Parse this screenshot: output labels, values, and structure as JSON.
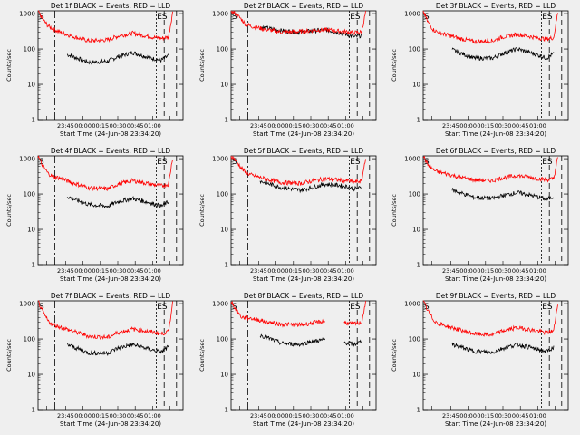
{
  "figure": {
    "background": "#efefef"
  },
  "colors": {
    "events": "#000000",
    "lld": "#ff0000",
    "axis": "#000000"
  },
  "chart_data": [
    {
      "type": "line",
      "title": "Det 1f BLACK = Events, RED = LLD",
      "ylabel": "Counts/sec",
      "xlabel": "Start Time (24-Jun-08 23:34:20)",
      "xticks": [
        "23:45",
        "00:00",
        "00:15",
        "00:30",
        "00:45",
        "01:00"
      ],
      "yticks": [
        "1",
        "10",
        "100",
        "1000"
      ],
      "ylim": [
        1,
        1200
      ],
      "yscale": "log",
      "markers": [
        "S",
        "ES"
      ],
      "series": [
        {
          "name": "Events",
          "color": "#000000",
          "x": [
            0.0,
            0.05,
            0.1,
            0.2,
            0.35,
            0.48,
            0.55,
            0.65,
            0.78,
            0.85,
            0.9
          ],
          "values": [
            null,
            null,
            null,
            70,
            42,
            45,
            60,
            80,
            55,
            48,
            65
          ]
        },
        {
          "name": "LLD",
          "color": "#ff0000",
          "x": [
            0.0,
            0.03,
            0.07,
            0.1,
            0.15,
            0.25,
            0.35,
            0.48,
            0.55,
            0.65,
            0.78,
            0.85,
            0.9,
            0.93
          ],
          "values": [
            1200,
            700,
            450,
            380,
            300,
            220,
            170,
            180,
            230,
            280,
            220,
            200,
            220,
            1200
          ]
        }
      ]
    },
    {
      "type": "line",
      "title": "Det 2f BLACK = Events, RED = LLD",
      "ylabel": "Counts/sec",
      "xlabel": "Start Time (24-Jun-08 23:34:20)",
      "xticks": [
        "23:45",
        "00:00",
        "00:15",
        "00:30",
        "00:45",
        "01:00"
      ],
      "yticks": [
        "1",
        "10",
        "100",
        "1000"
      ],
      "ylim": [
        1,
        1200
      ],
      "yscale": "log",
      "markers": [
        "S",
        "ES"
      ],
      "series": [
        {
          "name": "Events",
          "color": "#000000",
          "x": [
            0.0,
            0.05,
            0.1,
            0.2,
            0.35,
            0.48,
            0.55,
            0.65,
            0.78,
            0.85,
            0.9
          ],
          "values": [
            null,
            null,
            null,
            420,
            330,
            300,
            320,
            350,
            270,
            220,
            240
          ]
        },
        {
          "name": "LLD",
          "color": "#ff0000",
          "x": [
            0.0,
            0.03,
            0.07,
            0.1,
            0.15,
            0.25,
            0.35,
            0.48,
            0.55,
            0.65,
            0.78,
            0.85,
            0.9,
            0.93
          ],
          "values": [
            1200,
            1000,
            700,
            500,
            430,
            350,
            300,
            310,
            330,
            350,
            310,
            290,
            300,
            1200
          ]
        }
      ]
    },
    {
      "type": "line",
      "title": "Det 3f BLACK = Events, RED = LLD",
      "ylabel": "Counts/sec",
      "xlabel": "Start Time (24-Jun-08 23:34:20)",
      "xticks": [
        "23:45",
        "00:00",
        "00:15",
        "00:30",
        "00:45",
        "01:00"
      ],
      "yticks": [
        "1",
        "10",
        "100",
        "1000"
      ],
      "ylim": [
        1,
        1200
      ],
      "yscale": "log",
      "markers": [
        "S",
        "ES"
      ],
      "series": [
        {
          "name": "Events",
          "color": "#000000",
          "x": [
            0.0,
            0.05,
            0.1,
            0.2,
            0.35,
            0.48,
            0.55,
            0.65,
            0.78,
            0.85,
            0.9
          ],
          "values": [
            null,
            null,
            null,
            95,
            55,
            55,
            75,
            100,
            70,
            55,
            75
          ]
        },
        {
          "name": "LLD",
          "color": "#ff0000",
          "x": [
            0.0,
            0.03,
            0.07,
            0.1,
            0.15,
            0.25,
            0.35,
            0.48,
            0.55,
            0.65,
            0.78,
            0.85,
            0.9,
            0.93
          ],
          "values": [
            1200,
            600,
            350,
            300,
            260,
            200,
            160,
            170,
            220,
            260,
            210,
            190,
            210,
            1200
          ]
        }
      ]
    },
    {
      "type": "line",
      "title": "Det 4f BLACK = Events, RED = LLD",
      "ylabel": "Counts/sec",
      "xlabel": "Start Time (24-Jun-08 23:34:20)",
      "xticks": [
        "23:45",
        "00:00",
        "00:15",
        "00:30",
        "00:45",
        "01:00"
      ],
      "yticks": [
        "1",
        "10",
        "100",
        "1000"
      ],
      "ylim": [
        1,
        1200
      ],
      "yscale": "log",
      "markers": [
        "S",
        "ES"
      ],
      "series": [
        {
          "name": "Events",
          "color": "#000000",
          "x": [
            0.0,
            0.05,
            0.1,
            0.2,
            0.35,
            0.48,
            0.55,
            0.65,
            0.78,
            0.85,
            0.9
          ],
          "values": [
            null,
            null,
            null,
            85,
            50,
            45,
            60,
            75,
            55,
            45,
            60
          ]
        },
        {
          "name": "LLD",
          "color": "#ff0000",
          "x": [
            0.0,
            0.03,
            0.07,
            0.1,
            0.15,
            0.25,
            0.35,
            0.48,
            0.55,
            0.65,
            0.78,
            0.85,
            0.9,
            0.93
          ],
          "values": [
            1200,
            650,
            380,
            320,
            280,
            200,
            150,
            140,
            190,
            240,
            190,
            170,
            190,
            1200
          ]
        }
      ]
    },
    {
      "type": "line",
      "title": "Det 5f BLACK = Events, RED = LLD",
      "ylabel": "Counts/sec",
      "xlabel": "Start Time (24-Jun-08 23:34:20)",
      "xticks": [
        "23:45",
        "00:00",
        "00:15",
        "00:30",
        "00:45",
        "01:00"
      ],
      "yticks": [
        "1",
        "10",
        "100",
        "1000"
      ],
      "ylim": [
        1,
        1200
      ],
      "yscale": "log",
      "markers": [
        "S",
        "ES"
      ],
      "series": [
        {
          "name": "Events",
          "color": "#000000",
          "x": [
            0.0,
            0.05,
            0.1,
            0.2,
            0.35,
            0.48,
            0.55,
            0.65,
            0.78,
            0.85,
            0.9
          ],
          "values": [
            null,
            null,
            null,
            230,
            150,
            130,
            150,
            190,
            170,
            140,
            150
          ]
        },
        {
          "name": "LLD",
          "color": "#ff0000",
          "x": [
            0.0,
            0.03,
            0.07,
            0.1,
            0.15,
            0.25,
            0.35,
            0.48,
            0.55,
            0.65,
            0.78,
            0.85,
            0.9,
            0.93
          ],
          "values": [
            1200,
            900,
            550,
            400,
            330,
            260,
            210,
            200,
            230,
            270,
            240,
            220,
            230,
            1200
          ]
        }
      ]
    },
    {
      "type": "line",
      "title": "Det 6f BLACK = Events, RED = LLD",
      "ylabel": "Counts/sec",
      "xlabel": "Start Time (24-Jun-08 23:34:20)",
      "xticks": [
        "23:45",
        "00:00",
        "00:15",
        "00:30",
        "00:45",
        "01:00"
      ],
      "yticks": [
        "1",
        "10",
        "100",
        "1000"
      ],
      "ylim": [
        1,
        1200
      ],
      "yscale": "log",
      "markers": [
        "S",
        "ES"
      ],
      "series": [
        {
          "name": "Events",
          "color": "#000000",
          "x": [
            0.0,
            0.05,
            0.1,
            0.2,
            0.35,
            0.48,
            0.55,
            0.65,
            0.78,
            0.85,
            0.9
          ],
          "values": [
            null,
            null,
            null,
            130,
            80,
            75,
            90,
            110,
            85,
            70,
            85
          ]
        },
        {
          "name": "LLD",
          "color": "#ff0000",
          "x": [
            0.0,
            0.03,
            0.07,
            0.1,
            0.15,
            0.25,
            0.35,
            0.48,
            0.55,
            0.65,
            0.78,
            0.85,
            0.9,
            0.93
          ],
          "values": [
            1200,
            700,
            480,
            420,
            380,
            300,
            250,
            240,
            290,
            330,
            280,
            250,
            270,
            1200
          ]
        }
      ]
    },
    {
      "type": "line",
      "title": "Det 7f BLACK = Events, RED = LLD",
      "ylabel": "Counts/sec",
      "xlabel": "Start Time (24-Jun-08 23:34:20)",
      "xticks": [
        "23:45",
        "00:00",
        "00:15",
        "00:30",
        "00:45",
        "01:00"
      ],
      "yticks": [
        "1",
        "10",
        "100",
        "1000"
      ],
      "ylim": [
        1,
        1200
      ],
      "yscale": "log",
      "markers": [
        "S",
        "ES"
      ],
      "series": [
        {
          "name": "Events",
          "color": "#000000",
          "x": [
            0.0,
            0.05,
            0.1,
            0.2,
            0.35,
            0.48,
            0.55,
            0.65,
            0.78,
            0.85,
            0.9
          ],
          "values": [
            null,
            null,
            null,
            70,
            40,
            40,
            55,
            70,
            50,
            42,
            60
          ]
        },
        {
          "name": "LLD",
          "color": "#ff0000",
          "x": [
            0.0,
            0.03,
            0.07,
            0.1,
            0.15,
            0.25,
            0.35,
            0.48,
            0.55,
            0.65,
            0.78,
            0.85,
            0.9,
            0.93
          ],
          "values": [
            1200,
            600,
            320,
            260,
            220,
            160,
            120,
            110,
            150,
            190,
            160,
            140,
            160,
            1200
          ]
        }
      ]
    },
    {
      "type": "line",
      "title": "Det 8f BLACK = Events, RED = LLD",
      "ylabel": "Counts/sec",
      "xlabel": "Start Time (24-Jun-08 23:34:20)",
      "xticks": [
        "23:45",
        "00:00",
        "00:15",
        "00:30",
        "00:45",
        "01:00"
      ],
      "yticks": [
        "1",
        "10",
        "100",
        "1000"
      ],
      "ylim": [
        1,
        1200
      ],
      "yscale": "log",
      "markers": [
        "S",
        "ES"
      ],
      "series": [
        {
          "name": "Events",
          "color": "#000000",
          "x": [
            0.0,
            0.05,
            0.1,
            0.2,
            0.35,
            0.48,
            0.55,
            0.65,
            0.7,
            0.78,
            0.85,
            0.9
          ],
          "values": [
            null,
            null,
            null,
            130,
            75,
            70,
            85,
            95,
            null,
            80,
            70,
            85
          ]
        },
        {
          "name": "LLD",
          "color": "#ff0000",
          "x": [
            0.0,
            0.03,
            0.07,
            0.1,
            0.15,
            0.25,
            0.35,
            0.48,
            0.55,
            0.65,
            0.7,
            0.78,
            0.85,
            0.9,
            0.93
          ],
          "values": [
            1200,
            700,
            420,
            400,
            380,
            300,
            260,
            250,
            280,
            320,
            null,
            290,
            270,
            290,
            1200
          ]
        }
      ]
    },
    {
      "type": "line",
      "title": "Det 9f BLACK = Events, RED = LLD",
      "ylabel": "Counts/sec",
      "xlabel": "Start Time (24-Jun-08 23:34:20)",
      "xticks": [
        "23:45",
        "00:00",
        "00:15",
        "00:30",
        "00:45",
        "01:00"
      ],
      "yticks": [
        "1",
        "10",
        "100",
        "1000"
      ],
      "ylim": [
        1,
        1200
      ],
      "yscale": "log",
      "markers": [
        "S",
        "ES"
      ],
      "series": [
        {
          "name": "Events",
          "color": "#000000",
          "x": [
            0.0,
            0.05,
            0.1,
            0.2,
            0.35,
            0.48,
            0.55,
            0.65,
            0.78,
            0.85,
            0.9
          ],
          "values": [
            null,
            null,
            null,
            70,
            45,
            42,
            55,
            70,
            52,
            44,
            58
          ]
        },
        {
          "name": "LLD",
          "color": "#ff0000",
          "x": [
            0.0,
            0.03,
            0.07,
            0.1,
            0.15,
            0.25,
            0.35,
            0.48,
            0.55,
            0.65,
            0.78,
            0.85,
            0.9,
            0.93
          ],
          "values": [
            1200,
            650,
            350,
            280,
            240,
            180,
            140,
            130,
            170,
            210,
            170,
            150,
            170,
            1200
          ]
        }
      ]
    }
  ]
}
